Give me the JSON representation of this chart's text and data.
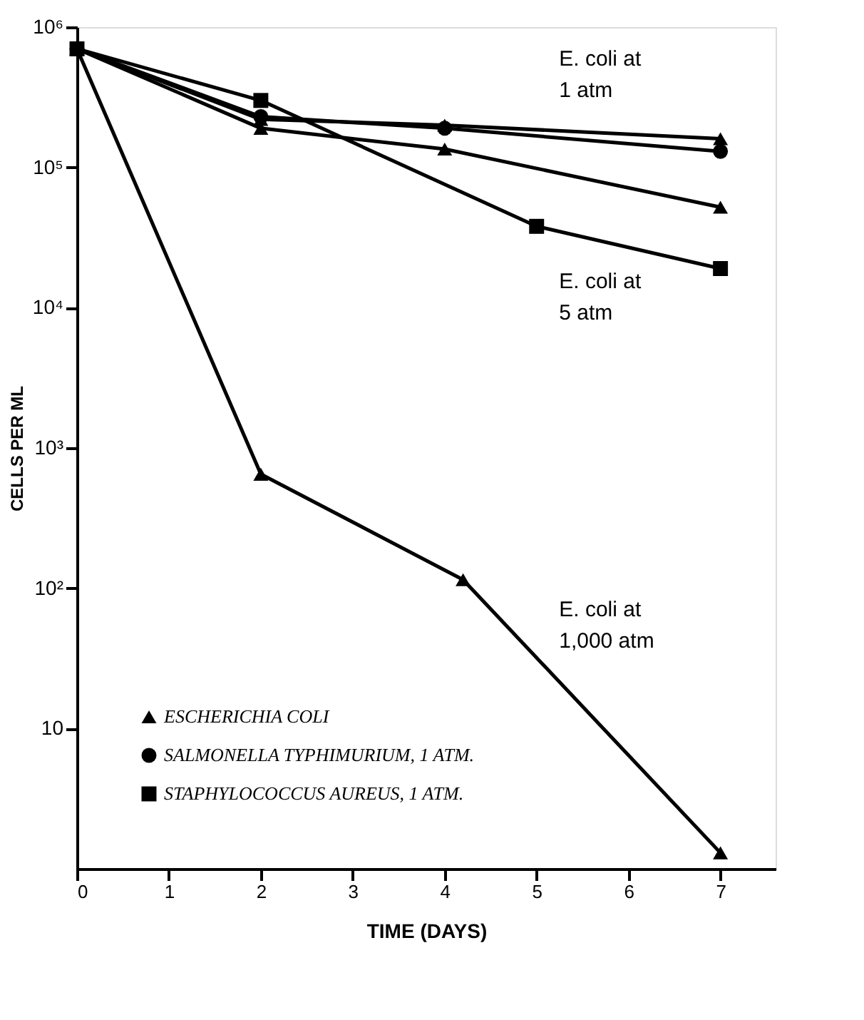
{
  "chart_data": {
    "type": "line",
    "xlabel": "TIME (DAYS)",
    "ylabel": "CELLS PER ML",
    "log": "y",
    "xlim": [
      0,
      7.6
    ],
    "xticks": [
      0,
      1,
      2,
      3,
      4,
      5,
      6,
      7
    ],
    "ylim": [
      1,
      1000000
    ],
    "yticks": [
      {
        "value": 10,
        "label": "10"
      },
      {
        "value": 100,
        "label": "10²"
      },
      {
        "value": 1000,
        "label": "10³"
      },
      {
        "value": 10000,
        "label": "10⁴"
      },
      {
        "value": 100000,
        "label": "10⁵"
      },
      {
        "value": 1000000,
        "label": "10⁶"
      }
    ],
    "grid": false,
    "legend": "bottom left",
    "line_style": "solid",
    "series": [
      {
        "name": "ESCHERICHIA COLI",
        "color": "#000000",
        "marker": "triangle",
        "x": [
          0,
          2,
          4,
          7
        ],
        "values": [
          700000,
          220000,
          200000,
          160000
        ]
      },
      {
        "name": "SALMONELLA TYPHIMURIUM, 1 ATM.",
        "color": "#000000",
        "marker": "circle",
        "x": [
          0,
          2,
          4,
          7
        ],
        "values": [
          700000,
          230000,
          190000,
          130000
        ]
      },
      {
        "name": "STAPHYLOCOCCUS AUREUS, 1 ATM.",
        "color": "#000000",
        "marker": "square",
        "x": [
          0,
          2,
          5,
          7
        ],
        "values": [
          700000,
          300000,
          38000,
          19000
        ]
      },
      {
        "color": "#000000",
        "marker": "triangle",
        "x": [
          0,
          2,
          4,
          7
        ],
        "values": [
          700000,
          190000,
          135000,
          52000
        ]
      },
      {
        "color": "#000000",
        "marker": "triangle",
        "x": [
          0,
          2,
          4.2,
          7
        ],
        "values": [
          700000,
          650,
          115,
          1.3
        ]
      }
    ],
    "annotations": [
      "E. coli at\n1 atm",
      "E. coli at\n5 atm",
      "E. coli at\n1,000 atm"
    ]
  }
}
